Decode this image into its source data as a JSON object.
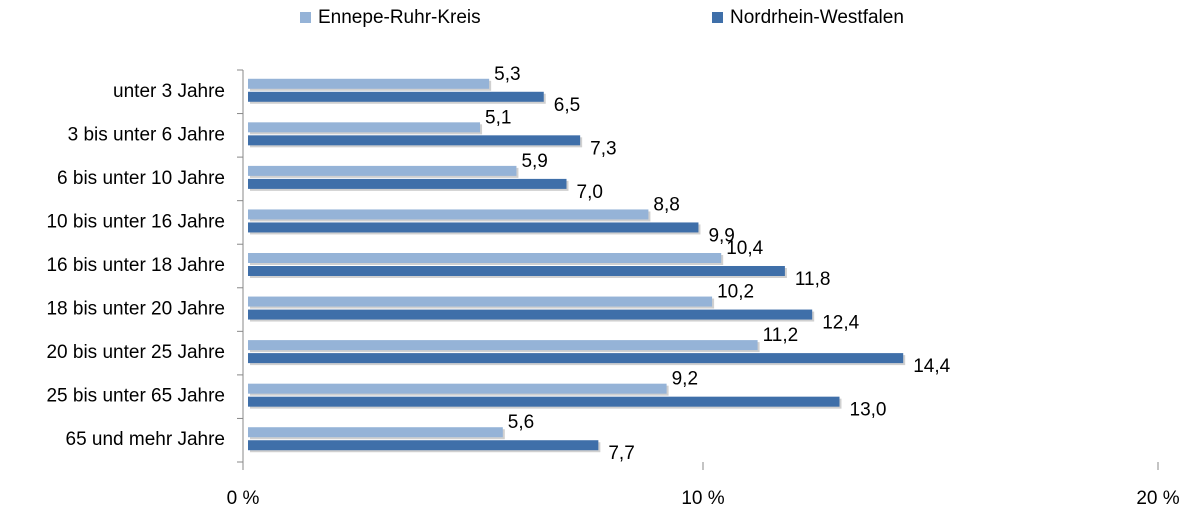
{
  "chart_data": {
    "type": "hbar",
    "categories": [
      "unter 3 Jahre",
      "3 bis unter 6 Jahre",
      "6 bis unter 10 Jahre",
      "10 bis unter 16 Jahre",
      "16 bis unter 18 Jahre",
      "18 bis unter 20 Jahre",
      "20 bis unter 25 Jahre",
      "25 bis unter 65 Jahre",
      "65 und mehr Jahre"
    ],
    "series": [
      {
        "name": "Ennepe-Ruhr-Kreis",
        "color": "#95b3d7",
        "values": [
          5.3,
          5.1,
          5.9,
          8.8,
          10.4,
          10.2,
          11.2,
          9.2,
          5.6
        ],
        "value_labels": [
          "5,3",
          "5,1",
          "5,9",
          "8,8",
          "10,4",
          "10,2",
          "11,2",
          "9,2",
          "5,6"
        ]
      },
      {
        "name": "Nordrhein-Westfalen",
        "color": "#3f6fa9",
        "values": [
          6.5,
          7.3,
          7.0,
          9.9,
          11.8,
          12.4,
          14.4,
          13.0,
          7.7
        ],
        "value_labels": [
          "6,5",
          "7,3",
          "7,0",
          "9,9",
          "11,8",
          "12,4",
          "14,4",
          "13,0",
          "7,7"
        ]
      }
    ],
    "xlim": [
      0,
      20
    ],
    "xticks": [
      {
        "value": 0,
        "label": "0 %"
      },
      {
        "value": 10,
        "label": "10 %"
      },
      {
        "value": 20,
        "label": "20 %"
      }
    ],
    "legend": "top",
    "grid": false
  }
}
